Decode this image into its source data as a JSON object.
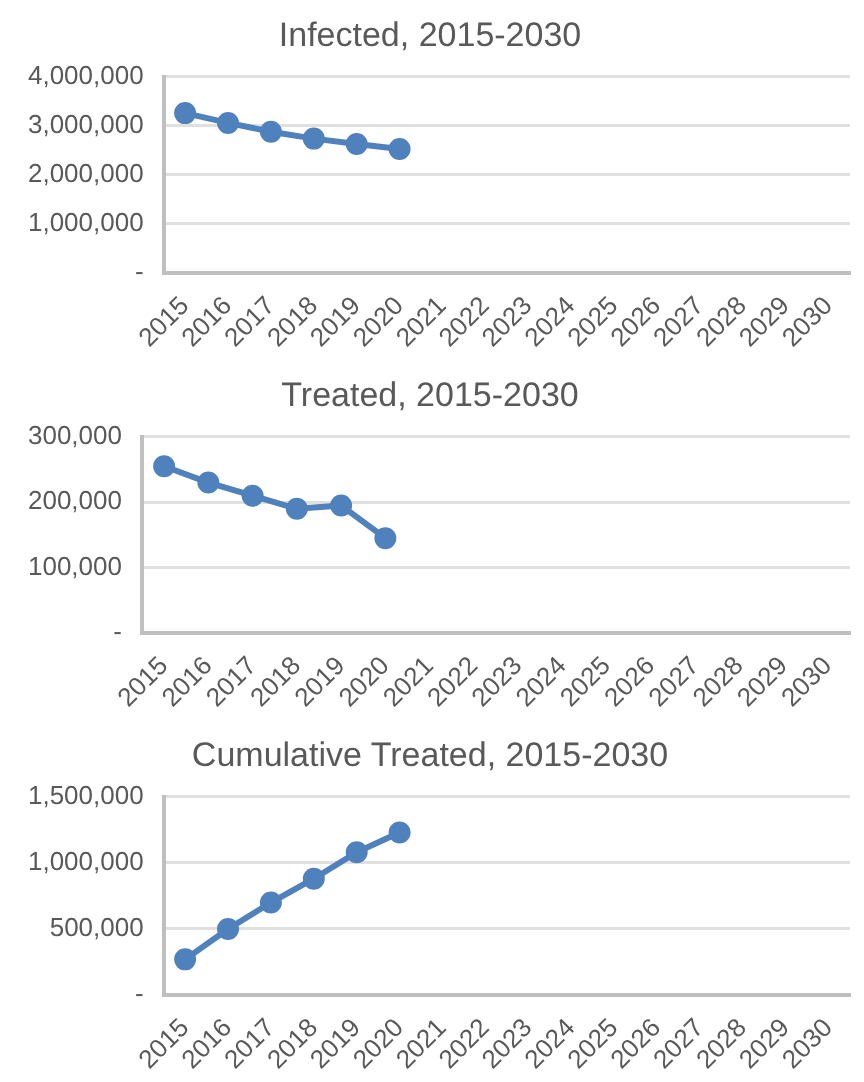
{
  "chart_data": [
    {
      "type": "line",
      "title": "Infected, 2015-2030",
      "categories": [
        "2015",
        "2016",
        "2017",
        "2018",
        "2019",
        "2020",
        "2021",
        "2022",
        "2023",
        "2024",
        "2025",
        "2026",
        "2027",
        "2028",
        "2029",
        "2030"
      ],
      "series": [
        {
          "color": "#4f81bd",
          "values": [
            3260000,
            3060000,
            2880000,
            2740000,
            2630000,
            2530000,
            null,
            null,
            null,
            null,
            null,
            null,
            null,
            null,
            null,
            null
          ]
        }
      ],
      "ylim": [
        0,
        4000000
      ],
      "yticks": [
        {
          "value": 0,
          "label": "-"
        },
        {
          "value": 1000000,
          "label": "1,000,000"
        },
        {
          "value": 2000000,
          "label": "2,000,000"
        },
        {
          "value": 3000000,
          "label": "3,000,000"
        },
        {
          "value": 4000000,
          "label": "4,000,000"
        }
      ],
      "grid": "y",
      "legend": false,
      "marker": "circle",
      "line_style": "solid"
    },
    {
      "type": "line",
      "title": "Treated, 2015-2030",
      "categories": [
        "2015",
        "2016",
        "2017",
        "2018",
        "2019",
        "2020",
        "2021",
        "2022",
        "2023",
        "2024",
        "2025",
        "2026",
        "2027",
        "2028",
        "2029",
        "2030"
      ],
      "series": [
        {
          "color": "#4f81bd",
          "values": [
            255000,
            230000,
            210000,
            190000,
            195000,
            145000,
            null,
            null,
            null,
            null,
            null,
            null,
            null,
            null,
            null,
            null
          ]
        }
      ],
      "ylim": [
        0,
        300000
      ],
      "yticks": [
        {
          "value": 0,
          "label": "-"
        },
        {
          "value": 100000,
          "label": "100,000"
        },
        {
          "value": 200000,
          "label": "200,000"
        },
        {
          "value": 300000,
          "label": "300,000"
        }
      ],
      "grid": "y",
      "legend": false,
      "marker": "circle",
      "line_style": "solid"
    },
    {
      "type": "line",
      "title": "Cumulative Treated, 2015-2030",
      "categories": [
        "2015",
        "2016",
        "2017",
        "2018",
        "2019",
        "2020",
        "2021",
        "2022",
        "2023",
        "2024",
        "2025",
        "2026",
        "2027",
        "2028",
        "2029",
        "2030"
      ],
      "series": [
        {
          "color": "#4f81bd",
          "values": [
            270000,
            500000,
            700000,
            880000,
            1080000,
            1230000,
            null,
            null,
            null,
            null,
            null,
            null,
            null,
            null,
            null,
            null
          ]
        }
      ],
      "ylim": [
        0,
        1500000
      ],
      "yticks": [
        {
          "value": 0,
          "label": "-"
        },
        {
          "value": 500000,
          "label": "500,000"
        },
        {
          "value": 1000000,
          "label": "1,000,000"
        },
        {
          "value": 1500000,
          "label": "1,500,000"
        }
      ],
      "grid": "y",
      "legend": false,
      "marker": "circle",
      "line_style": "solid"
    }
  ]
}
